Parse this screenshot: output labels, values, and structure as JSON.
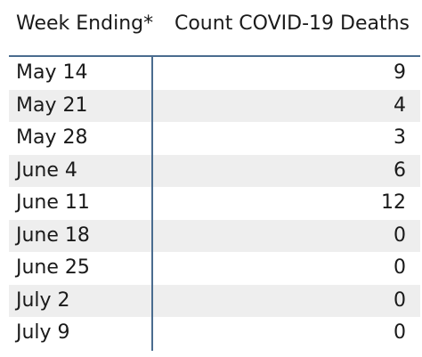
{
  "table": {
    "columns": [
      "Week Ending*",
      "Count COVID-19 Deaths"
    ],
    "rows": [
      {
        "week": "May 14",
        "count": "9"
      },
      {
        "week": "May 21",
        "count": "4"
      },
      {
        "week": "May 28",
        "count": "3"
      },
      {
        "week": "June 4",
        "count": "6"
      },
      {
        "week": "June 11",
        "count": "12"
      },
      {
        "week": "June 18",
        "count": "0"
      },
      {
        "week": "June 25",
        "count": "0"
      },
      {
        "week": "July 2",
        "count": "0"
      },
      {
        "week": "July 9",
        "count": "0"
      }
    ]
  },
  "colors": {
    "divider": "#4a6c8f",
    "alt_row": "#eeeeee"
  }
}
